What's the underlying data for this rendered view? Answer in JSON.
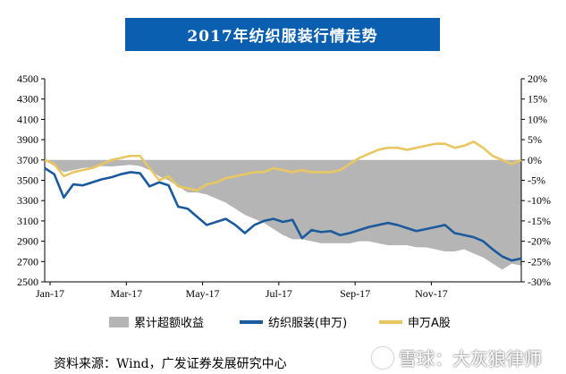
{
  "chart_data": {
    "type": "line",
    "title": "2017年纺织服装行情走势",
    "x_tick_labels": [
      "Jan-17",
      "Mar-17",
      "May-17",
      "Jul-17",
      "Sep-17",
      "Nov-17"
    ],
    "y_left": {
      "lim": [
        2500,
        4500
      ],
      "ticks": [
        2500,
        2700,
        2900,
        3100,
        3300,
        3500,
        3700,
        3900,
        4100,
        4300,
        4500
      ]
    },
    "y_right": {
      "lim": [
        -30,
        20
      ],
      "ticks": [
        "-30%",
        "-25%",
        "-20%",
        "-15%",
        "-10%",
        "-5%",
        "0%",
        "5%",
        "10%",
        "15%",
        "20%"
      ]
    },
    "legend_position": "bottom",
    "series": [
      {
        "name": "累计超额收益",
        "kind": "area",
        "axis": "right",
        "color": "#b5b5b5",
        "x": [
          0,
          2,
          4,
          6,
          8,
          10,
          12,
          14,
          16,
          18,
          20,
          22,
          24,
          26,
          28,
          30,
          32,
          34,
          36,
          38,
          40,
          42,
          44,
          46,
          48,
          50,
          52,
          54,
          56,
          58,
          60,
          62,
          64,
          66,
          68,
          70,
          72,
          74,
          76,
          78,
          80,
          82,
          84,
          86,
          88,
          90,
          92,
          94,
          96,
          98,
          100
        ],
        "values": [
          0,
          -1.5,
          -3,
          -2.5,
          -2,
          -1.8,
          -1.5,
          -1.6,
          -1.4,
          -1.2,
          -1.5,
          -2.5,
          -4,
          -5,
          -6.5,
          -8,
          -8,
          -8.5,
          -9.5,
          -10.5,
          -12,
          -13.5,
          -14.5,
          -15.5,
          -17,
          -18.5,
          -19.5,
          -19.5,
          -20,
          -20.5,
          -20.5,
          -20.5,
          -20.5,
          -20,
          -20,
          -20.5,
          -21,
          -21,
          -21,
          -21.5,
          -21.5,
          -22,
          -22.5,
          -22.5,
          -22,
          -23,
          -24,
          -25.5,
          -27,
          -25.5,
          -26
        ]
      },
      {
        "name": "纺织服装(申万)",
        "kind": "line",
        "axis": "left",
        "color": "#1b5a9c",
        "x": [
          0,
          2,
          4,
          6,
          8,
          10,
          12,
          14,
          16,
          18,
          20,
          22,
          24,
          26,
          28,
          30,
          32,
          34,
          36,
          38,
          40,
          42,
          44,
          46,
          48,
          50,
          52,
          54,
          56,
          58,
          60,
          62,
          64,
          66,
          68,
          70,
          72,
          74,
          76,
          78,
          80,
          82,
          84,
          86,
          88,
          90,
          92,
          94,
          96,
          98,
          100
        ],
        "values": [
          3620,
          3560,
          3330,
          3460,
          3450,
          3480,
          3510,
          3530,
          3560,
          3580,
          3570,
          3440,
          3480,
          3450,
          3240,
          3220,
          3140,
          3060,
          3090,
          3120,
          3060,
          2980,
          3060,
          3100,
          3120,
          3090,
          3110,
          2930,
          3010,
          2990,
          3000,
          2960,
          2980,
          3010,
          3040,
          3060,
          3080,
          3060,
          3030,
          3000,
          3020,
          3040,
          3060,
          2980,
          2960,
          2940,
          2900,
          2820,
          2750,
          2710,
          2730
        ]
      },
      {
        "name": "申万A股",
        "kind": "line",
        "axis": "right",
        "color": "#e8c762",
        "x": [
          0,
          2,
          4,
          6,
          8,
          10,
          12,
          14,
          16,
          18,
          20,
          22,
          24,
          26,
          28,
          30,
          32,
          34,
          36,
          38,
          40,
          42,
          44,
          46,
          48,
          50,
          52,
          54,
          56,
          58,
          60,
          62,
          64,
          66,
          68,
          70,
          72,
          74,
          76,
          78,
          80,
          82,
          84,
          86,
          88,
          90,
          92,
          94,
          96,
          98,
          100
        ],
        "values": [
          0,
          -1,
          -4,
          -3,
          -2.5,
          -2,
          -1,
          0,
          0.5,
          1,
          1,
          -2,
          -5,
          -4,
          -6.5,
          -7,
          -7.5,
          -6,
          -5.5,
          -4.5,
          -4,
          -3.5,
          -3,
          -3,
          -2,
          -2.5,
          -3,
          -2.5,
          -3,
          -3,
          -3,
          -2.5,
          -1,
          0.5,
          1.5,
          2.5,
          3,
          3,
          2.5,
          3,
          3.5,
          4,
          4,
          3,
          3.5,
          4.5,
          3,
          1,
          0,
          -1,
          0
        ]
      }
    ]
  },
  "legend": {
    "area_label": "累计超额收益",
    "line1_label": "纺织服装(申万)",
    "line2_label": "申万A股"
  },
  "source_text": "资料来源：Wind，广发证券发展研究中心",
  "watermark_text": "雪球：大灰狼律师"
}
